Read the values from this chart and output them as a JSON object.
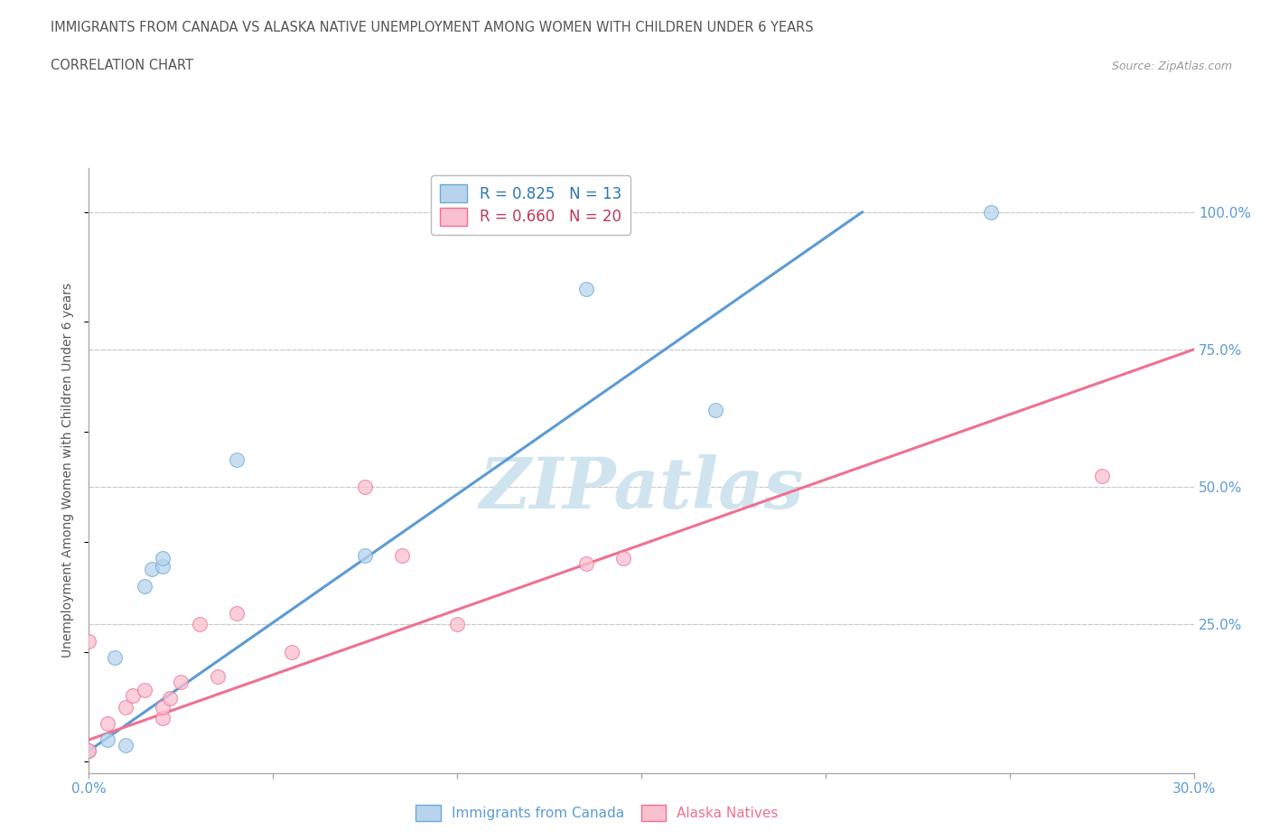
{
  "title_line1": "IMMIGRANTS FROM CANADA VS ALASKA NATIVE UNEMPLOYMENT AMONG WOMEN WITH CHILDREN UNDER 6 YEARS",
  "title_line2": "CORRELATION CHART",
  "source": "Source: ZipAtlas.com",
  "ylabel": "Unemployment Among Women with Children Under 6 years",
  "watermark": "ZIPatlas",
  "xlim": [
    0.0,
    0.3
  ],
  "ylim": [
    -0.02,
    1.08
  ],
  "ytick_positions_right": [
    1.0,
    0.75,
    0.5,
    0.25
  ],
  "ytick_labels_right": [
    "100.0%",
    "75.0%",
    "50.0%",
    "25.0%"
  ],
  "blue_scatter_x": [
    0.0,
    0.005,
    0.007,
    0.01,
    0.015,
    0.017,
    0.02,
    0.02,
    0.04,
    0.075,
    0.135,
    0.17,
    0.245
  ],
  "blue_scatter_y": [
    0.02,
    0.04,
    0.19,
    0.03,
    0.32,
    0.35,
    0.355,
    0.37,
    0.55,
    0.375,
    0.86,
    0.64,
    1.0
  ],
  "pink_scatter_x": [
    0.0,
    0.0,
    0.005,
    0.01,
    0.012,
    0.015,
    0.02,
    0.02,
    0.022,
    0.025,
    0.03,
    0.035,
    0.04,
    0.055,
    0.075,
    0.085,
    0.1,
    0.135,
    0.145,
    0.275
  ],
  "pink_scatter_y": [
    0.22,
    0.02,
    0.07,
    0.1,
    0.12,
    0.13,
    0.08,
    0.1,
    0.115,
    0.145,
    0.25,
    0.155,
    0.27,
    0.2,
    0.5,
    0.375,
    0.25,
    0.36,
    0.37,
    0.52
  ],
  "blue_line_x": [
    0.0,
    0.21
  ],
  "blue_line_y": [
    0.02,
    1.0
  ],
  "pink_line_x": [
    0.0,
    0.3
  ],
  "pink_line_y": [
    0.04,
    0.75
  ],
  "blue_fill_color": "#b8d4ed",
  "pink_fill_color": "#f9c0cf",
  "blue_edge_color": "#6aaad4",
  "pink_edge_color": "#f07090",
  "blue_line_color": "#5b9bd5",
  "pink_line_color": "#f07090",
  "grid_color": "#cccccc",
  "grid_linestyle": "--",
  "axis_line_color": "#aaaaaa",
  "title_color": "#555555",
  "right_label_color": "#5b9bd5",
  "bottom_label_color": "#5b9bd5",
  "ylabel_color": "#555555",
  "watermark_color": "#d0e4f0",
  "scatter_size": 130,
  "scatter_alpha": 0.75,
  "scatter_linewidth": 0.8,
  "xtick_positions": [
    0.0,
    0.05,
    0.1,
    0.15,
    0.2,
    0.25,
    0.3
  ],
  "xtick_labels": [
    "0.0%",
    "",
    "",
    "",
    "",
    "",
    "30.0%"
  ],
  "legend_blue_label": "R = 0.825   N = 13",
  "legend_pink_label": "R = 0.660   N = 20",
  "legend_blue_color": "#2e75b6",
  "legend_pink_color": "#c0385a",
  "bottom_legend_blue": "Immigrants from Canada",
  "bottom_legend_pink": "Alaska Natives"
}
